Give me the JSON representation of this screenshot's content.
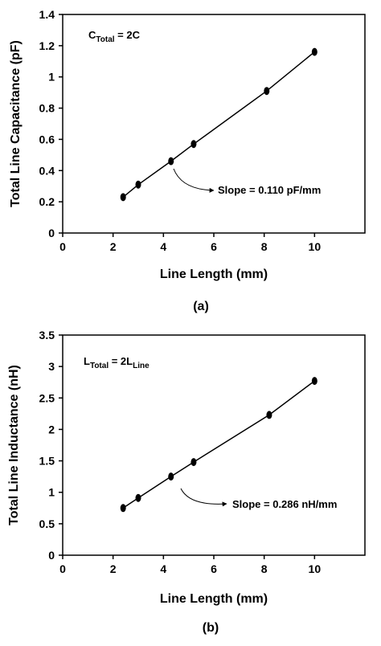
{
  "chart_data": [
    {
      "type": "scatter",
      "xlabel": "Line Length (mm)",
      "ylabel": "Total Line Capacitance (pF)",
      "xlim": [
        0,
        12
      ],
      "ylim": [
        0,
        1.4
      ],
      "xticks": [
        "0",
        "2",
        "4",
        "6",
        "8",
        "10"
      ],
      "yticks": [
        "0",
        "0.2",
        "0.4",
        "0.6",
        "0.8",
        "1",
        "1.2",
        "1.4"
      ],
      "series": [
        {
          "x": [
            2.4,
            3.0,
            4.3,
            5.2,
            8.1,
            10.0
          ],
          "y": [
            0.23,
            0.31,
            0.46,
            0.57,
            0.91,
            1.16
          ]
        }
      ],
      "formula": {
        "base": "C",
        "sub": "Total",
        "rest": " = 2C"
      },
      "annotation": "Slope = 0.110 pF/mm",
      "panel_label": "(a)"
    },
    {
      "type": "scatter",
      "xlabel": "Line Length (mm)",
      "ylabel": "Total Line Inductance (nH)",
      "xlim": [
        0,
        12
      ],
      "ylim": [
        0,
        3.5
      ],
      "xticks": [
        "0",
        "2",
        "4",
        "6",
        "8",
        "10"
      ],
      "yticks": [
        "0",
        "0.5",
        "1",
        "1.5",
        "2",
        "2.5",
        "3",
        "3.5"
      ],
      "series": [
        {
          "x": [
            2.4,
            3.0,
            4.3,
            5.2,
            8.2,
            10.0
          ],
          "y": [
            0.75,
            0.91,
            1.25,
            1.48,
            2.23,
            2.77
          ]
        }
      ],
      "formula": {
        "base": "L",
        "sub": "Total",
        "rest": " = 2L",
        "sub2": "Line"
      },
      "annotation": "Slope = 0.286 nH/mm",
      "panel_label": "(b)"
    }
  ]
}
